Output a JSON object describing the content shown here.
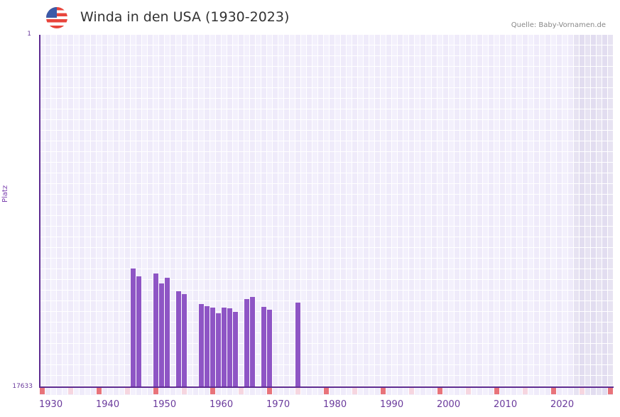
{
  "header": {
    "flag_icon": "us-flag-icon",
    "title": "Winda in den USA (1930-2023)",
    "source": "Quelle: Baby-Vornamen.de"
  },
  "colors": {
    "bar": "#8e55c5",
    "axis": "#5e2b91",
    "grid_a": "#efebfa",
    "grid_b": "#f3f0fc",
    "future_a": "#e2ddf0",
    "future_b": "#e7e3f2",
    "decade_marker": "#e8737a",
    "half_decade_marker": "#f6d6e0"
  },
  "chart_data": {
    "type": "bar",
    "title": "Winda in den USA (1930-2023)",
    "xlabel": "",
    "ylabel": "Platz",
    "y_inverted": true,
    "ylim": [
      1,
      17633
    ],
    "yticks": [
      "1",
      "17633"
    ],
    "xticks": [
      "1930",
      "1940",
      "1950",
      "1960",
      "1970",
      "1980",
      "1990",
      "2000",
      "2010",
      "2020"
    ],
    "x_range": [
      1930,
      2030
    ],
    "grid": true,
    "categories": [
      1946,
      1947,
      1950,
      1951,
      1952,
      1954,
      1955,
      1958,
      1959,
      1960,
      1961,
      1962,
      1963,
      1964,
      1966,
      1967,
      1969,
      1970,
      1975
    ],
    "values": [
      11697,
      12088,
      11946,
      12443,
      12159,
      12834,
      12976,
      13474,
      13580,
      13651,
      13936,
      13651,
      13687,
      13865,
      13225,
      13118,
      13616,
      13758,
      13402
    ]
  }
}
